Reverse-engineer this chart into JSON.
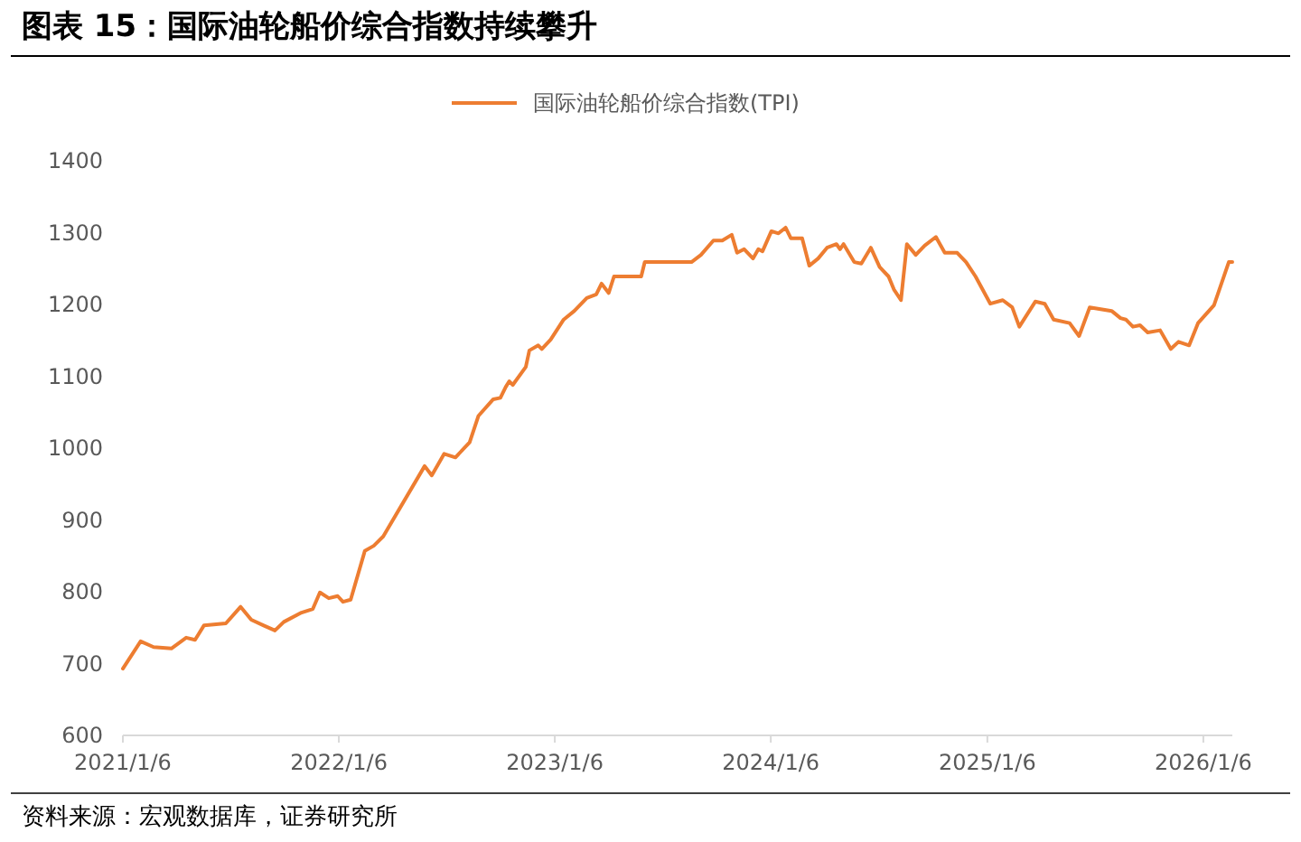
{
  "chart_data": {
    "type": "line",
    "title": "图表 15：国际油轮船价综合指数持续攀升",
    "annotations": [
      "资料来源：宏观数据库，证券研究所"
    ],
    "legend": "top",
    "xlim": [
      "2021-01-06",
      "2026-02-24"
    ],
    "xticks": [
      {
        "value": "2021-01-06",
        "label": "2021/1/6"
      },
      {
        "value": "2022-01-06",
        "label": "2022/1/6"
      },
      {
        "value": "2023-01-06",
        "label": "2023/1/6"
      },
      {
        "value": "2024-01-06",
        "label": "2024/1/6"
      },
      {
        "value": "2025-01-06",
        "label": "2025/1/6"
      },
      {
        "value": "2026-01-06",
        "label": "2026/1/6"
      }
    ],
    "ylim": [
      600,
      1400
    ],
    "yticks": [
      600,
      700,
      800,
      900,
      1000,
      1100,
      1200,
      1300,
      1400
    ],
    "x": [
      "2021-01-06",
      "2021-02-05",
      "2021-02-27",
      "2021-03-29",
      "2021-04-23",
      "2021-05-08",
      "2021-05-23",
      "2021-06-29",
      "2021-07-24",
      "2021-08-11",
      "2021-09-01",
      "2021-09-20",
      "2021-10-05",
      "2021-11-04",
      "2021-11-23",
      "2021-12-05",
      "2021-12-20",
      "2022-01-04",
      "2022-01-13",
      "2022-01-26",
      "2022-02-19",
      "2022-03-06",
      "2022-03-22",
      "2022-05-31",
      "2022-06-12",
      "2022-07-03",
      "2022-07-22",
      "2022-08-15",
      "2022-08-30",
      "2022-09-24",
      "2022-10-06",
      "2022-10-15",
      "2022-10-21",
      "2022-10-27",
      "2022-11-18",
      "2022-11-24",
      "2022-12-09",
      "2022-12-15",
      "2022-12-30",
      "2023-01-21",
      "2023-02-08",
      "2023-03-01",
      "2023-03-17",
      "2023-03-26",
      "2023-04-07",
      "2023-04-16",
      "2023-06-01",
      "2023-06-07",
      "2023-08-25",
      "2023-09-10",
      "2023-10-01",
      "2023-10-16",
      "2023-11-01",
      "2023-11-10",
      "2023-11-22",
      "2023-12-07",
      "2023-12-16",
      "2023-12-23",
      "2024-01-07",
      "2024-01-19",
      "2024-01-31",
      "2024-02-09",
      "2024-02-28",
      "2024-03-11",
      "2024-03-26",
      "2024-04-10",
      "2024-04-26",
      "2024-05-02",
      "2024-05-08",
      "2024-05-26",
      "2024-06-07",
      "2024-06-23",
      "2024-07-08",
      "2024-07-23",
      "2024-08-01",
      "2024-08-13",
      "2024-08-23",
      "2024-09-07",
      "2024-09-22",
      "2024-10-11",
      "2024-10-26",
      "2024-11-16",
      "2024-12-01",
      "2024-12-17",
      "2025-01-11",
      "2025-02-01",
      "2025-02-17",
      "2025-03-01",
      "2025-03-28",
      "2025-04-13",
      "2025-04-28",
      "2025-05-25",
      "2025-06-10",
      "2025-06-28",
      "2025-08-04",
      "2025-08-19",
      "2025-08-28",
      "2025-09-09",
      "2025-09-21",
      "2025-10-04",
      "2025-10-25",
      "2025-11-12",
      "2025-11-25",
      "2025-12-13",
      "2025-12-28",
      "2026-01-24",
      "2026-02-18",
      "2026-02-24"
    ],
    "series": [
      {
        "name": "国际油轮船价综合指数(TPI)",
        "color": "#ed7d31",
        "values": [
          693,
          731,
          723,
          721,
          736,
          733,
          753,
          756,
          779,
          761,
          753,
          746,
          758,
          771,
          776,
          799,
          791,
          794,
          786,
          789,
          857,
          864,
          877,
          975,
          962,
          992,
          987,
          1008,
          1045,
          1068,
          1070,
          1085,
          1093,
          1088,
          1113,
          1136,
          1143,
          1138,
          1151,
          1179,
          1191,
          1209,
          1214,
          1229,
          1216,
          1239,
          1239,
          1259,
          1259,
          1269,
          1289,
          1289,
          1297,
          1272,
          1277,
          1264,
          1277,
          1274,
          1302,
          1299,
          1307,
          1292,
          1292,
          1254,
          1264,
          1279,
          1284,
          1277,
          1284,
          1259,
          1257,
          1279,
          1252,
          1239,
          1221,
          1206,
          1284,
          1269,
          1282,
          1294,
          1272,
          1272,
          1259,
          1239,
          1201,
          1206,
          1196,
          1169,
          1204,
          1201,
          1179,
          1174,
          1156,
          1196,
          1191,
          1181,
          1179,
          1169,
          1171,
          1161,
          1164,
          1138,
          1148,
          1143,
          1174,
          1199,
          1259,
          1259
        ]
      }
    ]
  }
}
